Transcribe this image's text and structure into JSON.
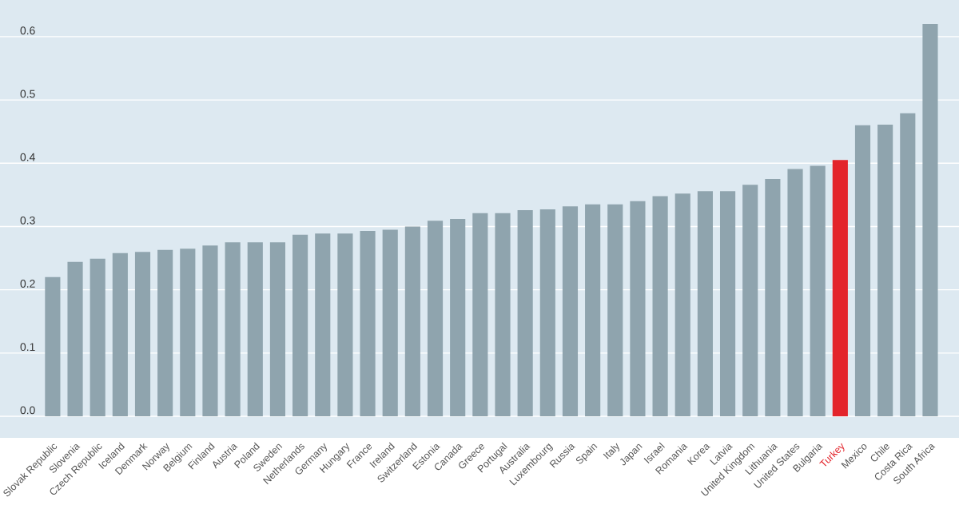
{
  "chart_data": {
    "type": "bar",
    "categories": [
      "Slovak Republic",
      "Slovenia",
      "Czech Republic",
      "Iceland",
      "Denmark",
      "Norway",
      "Belgium",
      "Finland",
      "Austria",
      "Poland",
      "Sweden",
      "Netherlands",
      "Germany",
      "Hungary",
      "France",
      "Ireland",
      "Switzerland",
      "Estonia",
      "Canada",
      "Greece",
      "Portugal",
      "Australia",
      "Luxembourg",
      "Russia",
      "Spain",
      "Italy",
      "Japan",
      "Israel",
      "Romania",
      "Korea",
      "Latvia",
      "United Kingdom",
      "Lithuania",
      "United States",
      "Bulgaria",
      "Turkey",
      "Mexico",
      "Chile",
      "Costa Rica",
      "South Africa"
    ],
    "values": [
      0.22,
      0.244,
      0.249,
      0.258,
      0.26,
      0.263,
      0.265,
      0.27,
      0.275,
      0.275,
      0.275,
      0.287,
      0.289,
      0.289,
      0.293,
      0.295,
      0.3,
      0.309,
      0.312,
      0.321,
      0.321,
      0.326,
      0.327,
      0.332,
      0.335,
      0.335,
      0.34,
      0.348,
      0.352,
      0.356,
      0.356,
      0.366,
      0.375,
      0.391,
      0.396,
      0.405,
      0.46,
      0.461,
      0.479,
      0.62
    ],
    "colors": [
      "#8fa4ae",
      "#8fa4ae",
      "#8fa4ae",
      "#8fa4ae",
      "#8fa4ae",
      "#8fa4ae",
      "#8fa4ae",
      "#8fa4ae",
      "#8fa4ae",
      "#8fa4ae",
      "#8fa4ae",
      "#8fa4ae",
      "#8fa4ae",
      "#8fa4ae",
      "#8fa4ae",
      "#8fa4ae",
      "#8fa4ae",
      "#8fa4ae",
      "#8fa4ae",
      "#8fa4ae",
      "#8fa4ae",
      "#8fa4ae",
      "#8fa4ae",
      "#8fa4ae",
      "#8fa4ae",
      "#8fa4ae",
      "#8fa4ae",
      "#8fa4ae",
      "#8fa4ae",
      "#8fa4ae",
      "#8fa4ae",
      "#8fa4ae",
      "#8fa4ae",
      "#8fa4ae",
      "#8fa4ae",
      "#e3242b",
      "#8fa4ae",
      "#8fa4ae",
      "#8fa4ae",
      "#8fa4ae"
    ],
    "ylim": [
      -0.034,
      0.658
    ],
    "yticks": [
      {
        "value": 0,
        "label": "0.0"
      },
      0.1,
      0.2,
      0.3,
      0.4,
      0.5,
      0.6
    ],
    "grid": "y"
  }
}
